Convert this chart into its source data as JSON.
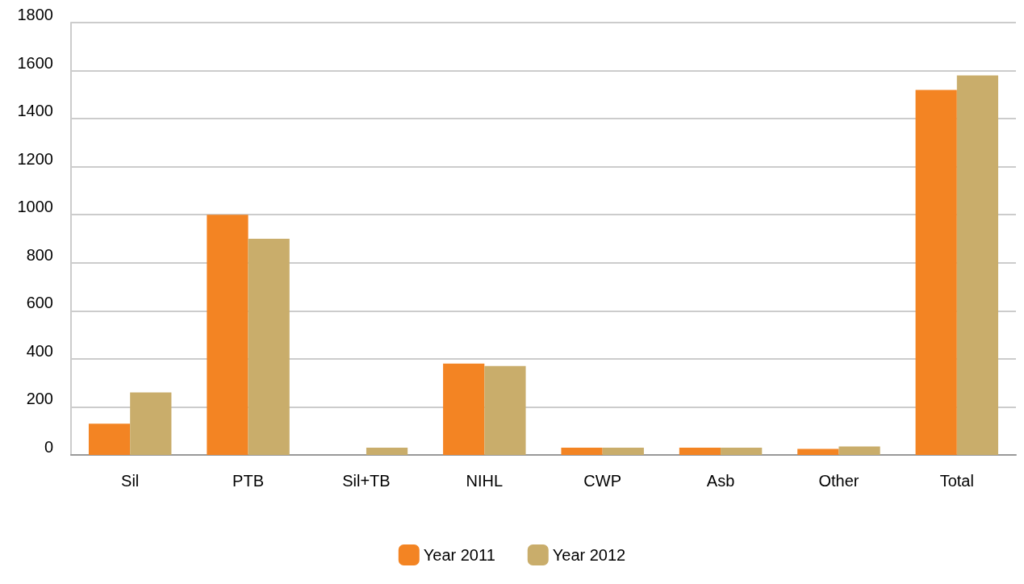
{
  "chart_data": {
    "type": "bar",
    "categories": [
      "Sil",
      "PTB",
      "Sil+TB",
      "NIHL",
      "CWP",
      "Asb",
      "Other",
      "Total"
    ],
    "series": [
      {
        "name": "Year 2011",
        "color": "#f38423",
        "values": [
          130,
          1000,
          0,
          380,
          30,
          30,
          25,
          1520
        ]
      },
      {
        "name": "Year 2012",
        "color": "#c9ad6b",
        "values": [
          260,
          900,
          30,
          370,
          30,
          30,
          35,
          1580
        ]
      }
    ],
    "ylim": [
      0,
      1800
    ],
    "yticks": [
      0,
      200,
      400,
      600,
      800,
      1000,
      1200,
      1400,
      1600,
      1800
    ],
    "grid": "y",
    "legend": "bottom"
  }
}
